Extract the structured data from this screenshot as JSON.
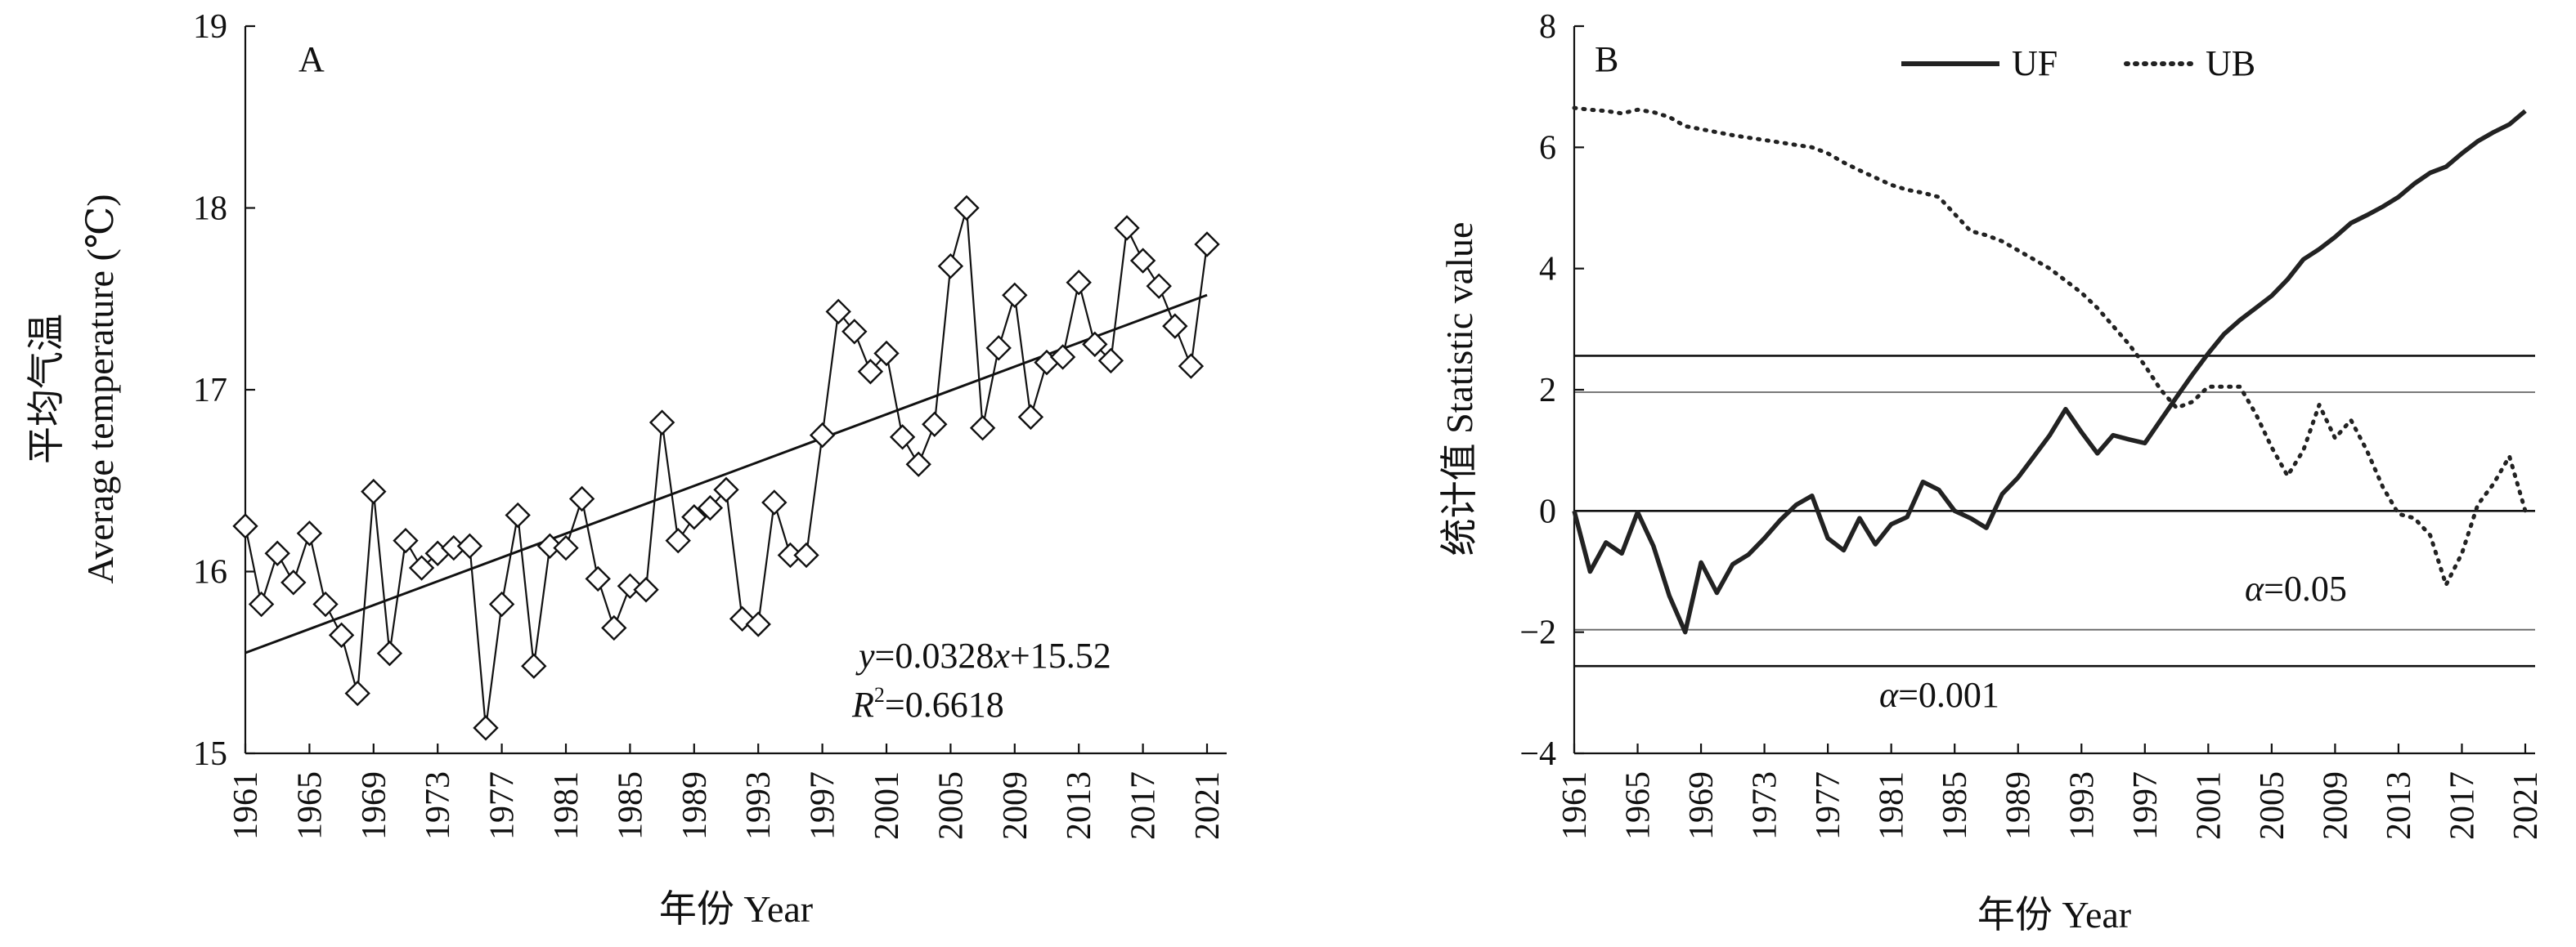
{
  "chart_data": [
    {
      "type": "scatter",
      "panel_label": "A",
      "xlabel": "年份 Year",
      "ylabel_line1": "平均气温",
      "ylabel_line2": "Average temperature (℃)",
      "xlim": [
        1961,
        2021
      ],
      "ylim": [
        15,
        19
      ],
      "x_ticks": [
        "1961",
        "1965",
        "1969",
        "1973",
        "1977",
        "1981",
        "1985",
        "1989",
        "1993",
        "1997",
        "2001",
        "2005",
        "2009",
        "2013",
        "2017",
        "2021"
      ],
      "y_ticks": [
        "15",
        "16",
        "17",
        "18",
        "19"
      ],
      "series": [
        {
          "x": [
            1961,
            1962,
            1963,
            1964,
            1965,
            1966,
            1967,
            1968,
            1969,
            1970,
            1971,
            1972,
            1973,
            1974,
            1975,
            1976,
            1977,
            1978,
            1979,
            1980,
            1981,
            1982,
            1983,
            1984,
            1985,
            1986,
            1987,
            1988,
            1989,
            1990,
            1991,
            1992,
            1993,
            1994,
            1995,
            1996,
            1997,
            1998,
            1999,
            2000,
            2001,
            2002,
            2003,
            2004,
            2005,
            2006,
            2007,
            2008,
            2009,
            2010,
            2011,
            2012,
            2013,
            2014,
            2015,
            2016,
            2017,
            2018,
            2019,
            2020,
            2021
          ],
          "values": [
            16.25,
            15.82,
            16.1,
            15.94,
            16.21,
            15.82,
            15.65,
            15.33,
            16.44,
            15.55,
            16.17,
            16.02,
            16.1,
            16.13,
            16.14,
            15.14,
            15.82,
            16.31,
            15.48,
            16.14,
            16.13,
            16.4,
            15.96,
            15.69,
            15.92,
            15.9,
            16.82,
            16.17,
            16.3,
            16.35,
            16.45,
            15.74,
            15.71,
            16.38,
            16.09,
            16.09,
            16.75,
            17.43,
            17.32,
            17.1,
            17.2,
            16.74,
            16.59,
            16.81,
            17.68,
            18.0,
            16.79,
            17.23,
            17.52,
            16.85,
            17.15,
            17.18,
            17.59,
            17.25,
            17.16,
            17.89,
            17.71,
            17.57,
            17.35,
            17.13,
            17.8
          ]
        }
      ],
      "trend_line": {
        "slope": 0.0328,
        "intercept": 15.52
      },
      "annotation_eq": {
        "y": "y",
        "eq": "=0.0328",
        "x": "x",
        "rest": "+15.52"
      },
      "annotation_r2": {
        "R": "R",
        "sup": "2",
        "rest": "=0.6618"
      }
    },
    {
      "type": "line",
      "panel_label": "B",
      "xlabel": "年份 Year",
      "ylabel": "统计值 Statistic value",
      "xlim": [
        1961,
        2021
      ],
      "ylim": [
        -4,
        8
      ],
      "x_ticks": [
        "1961",
        "1965",
        "1969",
        "1973",
        "1977",
        "1981",
        "1985",
        "1989",
        "1993",
        "1997",
        "2001",
        "2005",
        "2009",
        "2013",
        "2017",
        "2021"
      ],
      "y_ticks": [
        "−4",
        "−2",
        "0",
        "2",
        "4",
        "6",
        "8"
      ],
      "x": [
        1961,
        1962,
        1963,
        1964,
        1965,
        1966,
        1967,
        1968,
        1969,
        1970,
        1971,
        1972,
        1973,
        1974,
        1975,
        1976,
        1977,
        1978,
        1979,
        1980,
        1981,
        1982,
        1983,
        1984,
        1985,
        1986,
        1987,
        1988,
        1989,
        1990,
        1991,
        1992,
        1993,
        1994,
        1995,
        1996,
        1997,
        1998,
        1999,
        2000,
        2001,
        2002,
        2003,
        2004,
        2005,
        2006,
        2007,
        2008,
        2009,
        2010,
        2011,
        2012,
        2013,
        2014,
        2015,
        2016,
        2017,
        2018,
        2019,
        2020,
        2021
      ],
      "series": [
        {
          "name": "UF",
          "style": "solid",
          "values": [
            0.0,
            -1.0,
            -0.52,
            -0.7,
            -0.02,
            -0.58,
            -1.4,
            -2.0,
            -0.85,
            -1.35,
            -0.88,
            -0.72,
            -0.45,
            -0.15,
            0.1,
            0.25,
            -0.45,
            -0.65,
            -0.12,
            -0.55,
            -0.22,
            -0.1,
            0.48,
            0.35,
            0.0,
            -0.12,
            -0.28,
            0.28,
            0.55,
            0.9,
            1.25,
            1.68,
            1.3,
            0.95,
            1.25,
            1.18,
            1.12,
            1.5,
            1.88,
            2.25,
            2.6,
            2.92,
            3.15,
            3.35,
            3.55,
            3.82,
            4.15,
            4.32,
            4.52,
            4.75,
            4.88,
            5.02,
            5.18,
            5.4,
            5.58,
            5.68,
            5.9,
            6.1,
            6.25,
            6.38,
            6.6
          ]
        },
        {
          "name": "UB",
          "style": "dotted",
          "values": [
            6.65,
            6.62,
            6.6,
            6.56,
            6.62,
            6.58,
            6.5,
            6.35,
            6.3,
            6.25,
            6.2,
            6.16,
            6.12,
            6.08,
            6.04,
            6.0,
            5.9,
            5.75,
            5.62,
            5.5,
            5.38,
            5.3,
            5.25,
            5.18,
            4.9,
            4.62,
            4.55,
            4.45,
            4.3,
            4.15,
            4.0,
            3.8,
            3.6,
            3.35,
            3.05,
            2.75,
            2.4,
            2.0,
            1.7,
            1.8,
            2.05,
            2.05,
            2.05,
            1.6,
            1.05,
            0.58,
            1.0,
            1.75,
            1.2,
            1.5,
            1.0,
            0.4,
            -0.05,
            -0.12,
            -0.4,
            -1.22,
            -0.7,
            0.1,
            0.45,
            0.9,
            0.0
          ]
        }
      ],
      "legend_position": "top-center",
      "reference_lines": [
        2.56,
        1.96,
        0,
        -1.96,
        -2.56
      ],
      "annotation_005": {
        "alpha": "α",
        "rest": "=0.05"
      },
      "annotation_0001": {
        "alpha": "α",
        "rest": "=0.001"
      }
    }
  ]
}
